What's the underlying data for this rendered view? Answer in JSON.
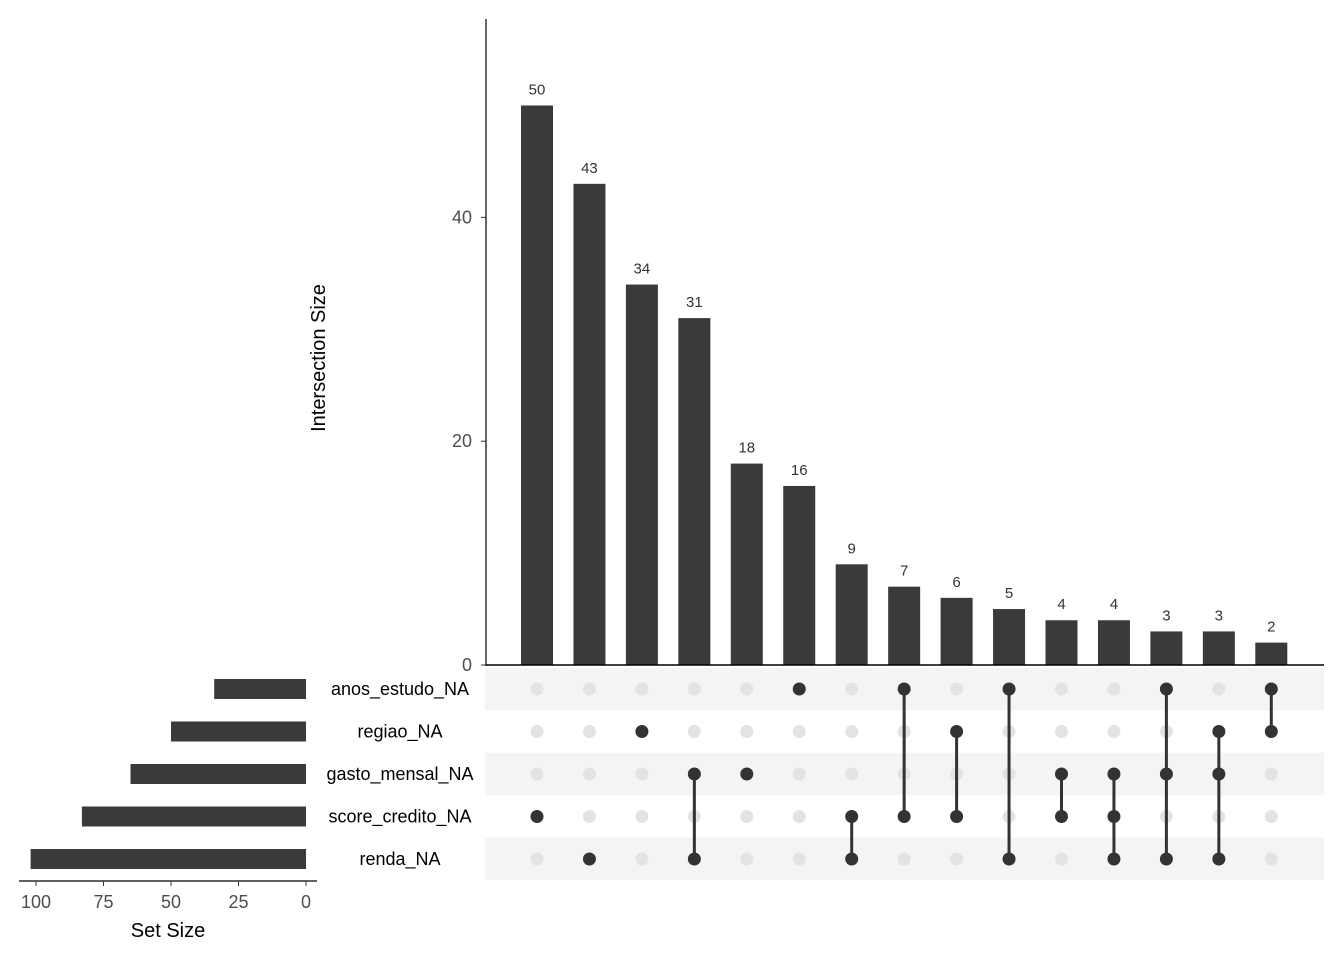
{
  "chart_data": {
    "type": "upset",
    "sets": [
      "anos_estudo_NA",
      "regiao_NA",
      "gasto_mensal_NA",
      "score_credito_NA",
      "renda_NA"
    ],
    "set_sizes": [
      34,
      50,
      65,
      83,
      102
    ],
    "intersections": [
      {
        "members": [
          "score_credito_NA"
        ],
        "size": 50
      },
      {
        "members": [
          "renda_NA"
        ],
        "size": 43
      },
      {
        "members": [
          "regiao_NA"
        ],
        "size": 34
      },
      {
        "members": [
          "gasto_mensal_NA",
          "renda_NA"
        ],
        "size": 31
      },
      {
        "members": [
          "gasto_mensal_NA"
        ],
        "size": 18
      },
      {
        "members": [
          "anos_estudo_NA"
        ],
        "size": 16
      },
      {
        "members": [
          "score_credito_NA",
          "renda_NA"
        ],
        "size": 9
      },
      {
        "members": [
          "anos_estudo_NA",
          "score_credito_NA"
        ],
        "size": 7
      },
      {
        "members": [
          "regiao_NA",
          "score_credito_NA"
        ],
        "size": 6
      },
      {
        "members": [
          "anos_estudo_NA",
          "renda_NA"
        ],
        "size": 5
      },
      {
        "members": [
          "gasto_mensal_NA",
          "score_credito_NA"
        ],
        "size": 4
      },
      {
        "members": [
          "gasto_mensal_NA",
          "score_credito_NA",
          "renda_NA"
        ],
        "size": 4
      },
      {
        "members": [
          "anos_estudo_NA",
          "gasto_mensal_NA",
          "renda_NA"
        ],
        "size": 3
      },
      {
        "members": [
          "regiao_NA",
          "gasto_mensal_NA",
          "renda_NA"
        ],
        "size": 3
      },
      {
        "members": [
          "anos_estudo_NA",
          "regiao_NA"
        ],
        "size": 2
      }
    ],
    "intersection_axis": {
      "label": "Intersection Size",
      "ticks": [
        0,
        20,
        40
      ],
      "range": [
        0,
        57.5
      ]
    },
    "set_size_axis": {
      "label": "Set Size",
      "ticks": [
        100,
        75,
        50,
        25,
        0
      ],
      "range": [
        0,
        110
      ]
    },
    "colors": {
      "bar": "#3a3a3a",
      "dot_active": "#333333",
      "dot_inactive": "#e3e3e3",
      "stripe": "#f4f4f4"
    }
  }
}
